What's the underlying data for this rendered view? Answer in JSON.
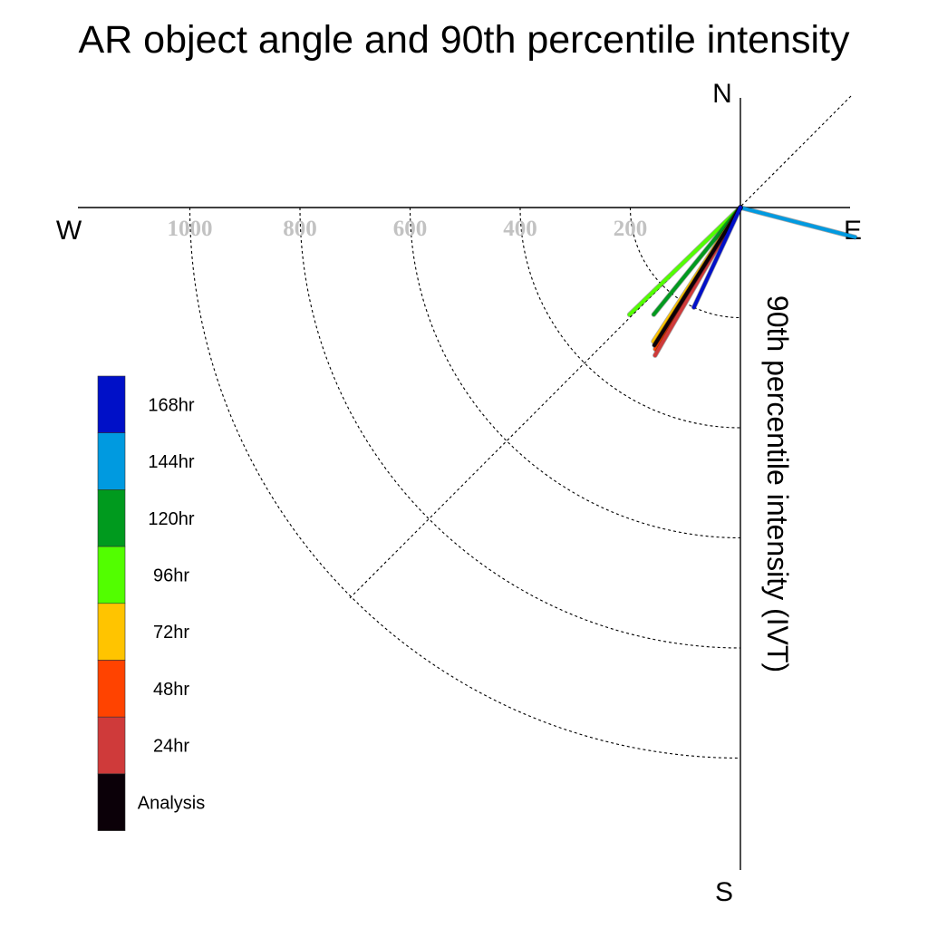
{
  "chart_data": {
    "type": "polar-vector",
    "title": "AR object angle and 90th percentile intensity",
    "radial_label": "90th percentile intensity (IVT)",
    "directions": {
      "north": "N",
      "south": "S",
      "east": "E",
      "west": "W"
    },
    "radial_ticks": [
      200,
      400,
      600,
      800,
      1000
    ],
    "radial_range": [
      0,
      1200
    ],
    "grid": true,
    "legend_position": "left",
    "series": [
      {
        "name": "168hr",
        "color": "#0010c8",
        "angle_deg": 25,
        "intensity": 200,
        "lines": []
      },
      {
        "name": "144hr",
        "color": "#009ae0",
        "angle_deg": -75.5,
        "intensity": 215,
        "lines": []
      },
      {
        "name": "120hr",
        "color": "#009a1e",
        "angle_deg": 39,
        "intensity": 250,
        "lines": []
      },
      {
        "name": "96hr",
        "color": "#52fe00",
        "angle_deg": 46,
        "intensity": 280,
        "lines": []
      },
      {
        "name": "72hr",
        "color": "#ffc400",
        "angle_deg": 33,
        "intensity": 290,
        "lines": []
      },
      {
        "name": "48hr",
        "color": "#ff4300",
        "angle_deg": 31,
        "intensity": 300,
        "lines": []
      },
      {
        "name": "24hr",
        "color": "#cf3a3a",
        "angle_deg": 30,
        "intensity": 310,
        "lines": []
      },
      {
        "name": "Analysis",
        "color": "#0b0008",
        "angle_deg": 32,
        "intensity": 295,
        "lines": []
      }
    ],
    "vectors": [
      {
        "series": "144hr",
        "angle_deg": -75.5,
        "intensity": 215
      },
      {
        "series": "96hr",
        "angle_deg": 46,
        "intensity": 280
      },
      {
        "series": "120hr",
        "angle_deg": 39,
        "intensity": 250
      },
      {
        "series": "72hr",
        "angle_deg": 33,
        "intensity": 290
      },
      {
        "series": "48hr",
        "angle_deg": 31,
        "intensity": 300
      },
      {
        "series": "24hr",
        "angle_deg": 30,
        "intensity": 310
      },
      {
        "series": "Analysis",
        "angle_deg": 32,
        "intensity": 295
      },
      {
        "series": "168hr",
        "angle_deg": 25,
        "intensity": 200
      }
    ]
  }
}
